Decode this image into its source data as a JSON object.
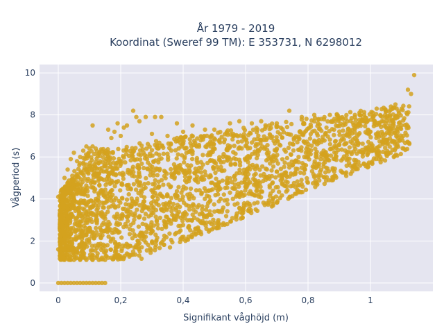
{
  "chart_data": {
    "type": "scatter",
    "title": "År 1979 - 2019",
    "subtitle": "Koordinat (Sweref 99 TM): E 353731, N 6298012",
    "xlabel": "Signifikant våghöjd (m)",
    "ylabel": "Vågperiod (s)",
    "xlim": [
      -0.06,
      1.2
    ],
    "ylim": [
      -0.4,
      10.4
    ],
    "xticks": [
      0,
      0.2,
      0.4,
      0.6,
      0.8,
      1
    ],
    "xtick_labels": [
      "0",
      "0,2",
      "0,4",
      "0,6",
      "0,8",
      "1"
    ],
    "yticks": [
      0,
      2,
      4,
      6,
      8,
      10
    ],
    "ytick_labels": [
      "0",
      "2",
      "4",
      "6",
      "8",
      "10"
    ],
    "grid": true,
    "colors": {
      "marker": "#d4a21f",
      "plot_bg": "#e5e5f0",
      "grid": "#ffffff"
    },
    "series": [
      {
        "points": [
          [
            0.0,
            0.0
          ],
          [
            0.01,
            0.0
          ],
          [
            0.02,
            0.0
          ],
          [
            0.03,
            0.0
          ],
          [
            0.04,
            0.0
          ],
          [
            0.05,
            0.0
          ],
          [
            0.06,
            0.0
          ],
          [
            0.07,
            0.0
          ],
          [
            0.08,
            0.0
          ],
          [
            0.09,
            0.0
          ],
          [
            0.1,
            0.0
          ],
          [
            0.11,
            0.0
          ],
          [
            0.12,
            0.0
          ],
          [
            0.13,
            0.0
          ],
          [
            0.14,
            0.0
          ],
          [
            0.15,
            0.0
          ],
          [
            0.0,
            1.6
          ],
          [
            0.0,
            4.1
          ],
          [
            0.01,
            1.2
          ],
          [
            0.01,
            3.0
          ],
          [
            0.01,
            4.4
          ],
          [
            0.02,
            1.1
          ],
          [
            0.02,
            2.0
          ],
          [
            0.02,
            5.0
          ],
          [
            0.03,
            1.2
          ],
          [
            0.03,
            3.5
          ],
          [
            0.03,
            5.4
          ],
          [
            0.04,
            1.1
          ],
          [
            0.04,
            2.6
          ],
          [
            0.04,
            5.9
          ],
          [
            0.05,
            1.1
          ],
          [
            0.05,
            4.0
          ],
          [
            0.05,
            6.2
          ],
          [
            0.06,
            1.2
          ],
          [
            0.06,
            3.1
          ],
          [
            0.06,
            5.8
          ],
          [
            0.07,
            1.1
          ],
          [
            0.07,
            2.2
          ],
          [
            0.07,
            6.0
          ],
          [
            0.08,
            1.2
          ],
          [
            0.08,
            4.5
          ],
          [
            0.08,
            6.3
          ],
          [
            0.09,
            1.1
          ],
          [
            0.09,
            3.3
          ],
          [
            0.09,
            6.5
          ],
          [
            0.1,
            1.2
          ],
          [
            0.1,
            2.5
          ],
          [
            0.1,
            6.4
          ],
          [
            0.11,
            1.1
          ],
          [
            0.11,
            4.8
          ],
          [
            0.11,
            6.5
          ],
          [
            0.12,
            1.2
          ],
          [
            0.12,
            3.0
          ],
          [
            0.12,
            6.4
          ],
          [
            0.13,
            1.1
          ],
          [
            0.13,
            5.2
          ],
          [
            0.14,
            1.2
          ],
          [
            0.14,
            6.3
          ],
          [
            0.15,
            1.1
          ],
          [
            0.15,
            6.2
          ],
          [
            0.16,
            1.2
          ],
          [
            0.16,
            7.3
          ],
          [
            0.11,
            7.5
          ],
          [
            0.17,
            1.2
          ],
          [
            0.17,
            6.9
          ],
          [
            0.18,
            1.3
          ],
          [
            0.18,
            7.2
          ],
          [
            0.19,
            1.2
          ],
          [
            0.19,
            7.6
          ],
          [
            0.2,
            1.2
          ],
          [
            0.2,
            7.0
          ],
          [
            0.21,
            1.2
          ],
          [
            0.21,
            7.4
          ],
          [
            0.22,
            1.4
          ],
          [
            0.22,
            7.5
          ],
          [
            0.24,
            1.5
          ],
          [
            0.24,
            8.2
          ],
          [
            0.25,
            1.8
          ],
          [
            0.25,
            7.9
          ],
          [
            0.26,
            1.9
          ],
          [
            0.26,
            7.7
          ],
          [
            0.28,
            2.2
          ],
          [
            0.28,
            7.9
          ],
          [
            0.3,
            2.5
          ],
          [
            0.3,
            7.1
          ],
          [
            0.31,
            7.9
          ],
          [
            0.32,
            2.6
          ],
          [
            0.33,
            7.9
          ],
          [
            0.35,
            2.9
          ],
          [
            0.35,
            7.0
          ],
          [
            0.37,
            3.2
          ],
          [
            0.38,
            7.6
          ],
          [
            0.4,
            3.3
          ],
          [
            0.4,
            7.2
          ],
          [
            0.42,
            3.5
          ],
          [
            0.43,
            7.5
          ],
          [
            0.45,
            3.7
          ],
          [
            0.47,
            7.3
          ],
          [
            0.48,
            3.8
          ],
          [
            0.5,
            7.3
          ],
          [
            0.52,
            4.0
          ],
          [
            0.55,
            7.6
          ],
          [
            0.55,
            4.3
          ],
          [
            0.58,
            7.7
          ],
          [
            0.6,
            4.6
          ],
          [
            0.62,
            7.6
          ],
          [
            0.63,
            4.9
          ],
          [
            0.65,
            7.7
          ],
          [
            0.67,
            5.0
          ],
          [
            0.7,
            7.6
          ],
          [
            0.7,
            5.3
          ],
          [
            0.74,
            8.2
          ],
          [
            0.75,
            5.6
          ],
          [
            0.78,
            7.9
          ],
          [
            0.8,
            6.0
          ],
          [
            0.82,
            8.0
          ],
          [
            0.85,
            6.3
          ],
          [
            0.87,
            8.0
          ],
          [
            0.9,
            6.6
          ],
          [
            0.95,
            7.9
          ],
          [
            0.95,
            6.9
          ],
          [
            0.98,
            8.0
          ],
          [
            1.0,
            7.2
          ],
          [
            1.02,
            8.3
          ],
          [
            1.05,
            7.6
          ],
          [
            1.08,
            8.5
          ],
          [
            1.1,
            8.3
          ],
          [
            1.12,
            9.2
          ],
          [
            1.13,
            9.0
          ],
          [
            1.14,
            9.9
          ]
        ]
      }
    ]
  }
}
